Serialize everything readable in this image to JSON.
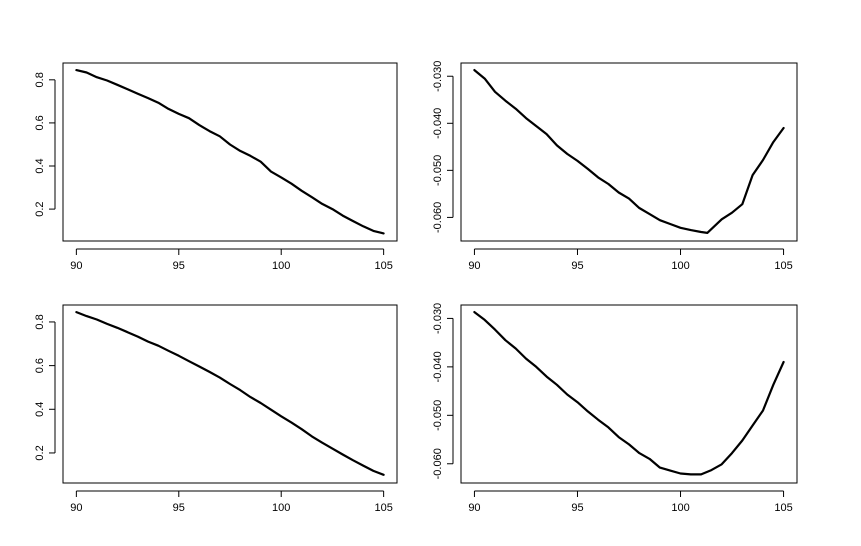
{
  "chart_data": [
    {
      "type": "line",
      "xlim": [
        90,
        105
      ],
      "ylim": [
        0.085,
        0.845
      ],
      "x_ticks": [
        "90",
        "95",
        "100",
        "105"
      ],
      "y_ticks": [
        "0.2",
        "0.4",
        "0.6",
        "0.8"
      ],
      "series": [
        {
          "x": [
            90,
            90.5,
            91,
            91.5,
            92,
            92.5,
            93,
            93.5,
            94,
            94.5,
            95,
            95.5,
            96,
            96.5,
            97,
            97.5,
            98,
            98.5,
            99,
            99.5,
            100,
            100.5,
            101,
            101.5,
            102,
            102.5,
            103,
            103.5,
            104,
            104.5,
            105
          ],
          "y": [
            0.845,
            0.834,
            0.812,
            0.797,
            0.777,
            0.756,
            0.735,
            0.715,
            0.694,
            0.665,
            0.642,
            0.622,
            0.59,
            0.562,
            0.538,
            0.5,
            0.47,
            0.447,
            0.42,
            0.374,
            0.347,
            0.318,
            0.285,
            0.255,
            0.224,
            0.2,
            0.17,
            0.145,
            0.12,
            0.099,
            0.087
          ]
        }
      ]
    },
    {
      "type": "line",
      "xlim": [
        90,
        105
      ],
      "ylim": [
        -0.0635,
        -0.0287
      ],
      "x_ticks": [
        "90",
        "95",
        "100",
        "105"
      ],
      "y_ticks": [
        "-0.030",
        "-0.040",
        "-0.050",
        "-0.060"
      ],
      "series": [
        {
          "x": [
            90,
            90.5,
            91,
            91.5,
            92,
            92.5,
            93,
            93.5,
            94,
            94.5,
            95,
            95.5,
            96,
            96.5,
            97,
            97.5,
            98,
            98.5,
            99,
            99.5,
            100,
            100.5,
            101,
            101.3,
            102,
            102.5,
            103,
            103.5,
            104,
            104.5,
            105
          ],
          "y": [
            -0.0287,
            -0.0305,
            -0.0333,
            -0.0352,
            -0.0369,
            -0.0389,
            -0.0406,
            -0.0423,
            -0.0447,
            -0.0465,
            -0.048,
            -0.0497,
            -0.0515,
            -0.0529,
            -0.0547,
            -0.056,
            -0.058,
            -0.0593,
            -0.0606,
            -0.0614,
            -0.0622,
            -0.0627,
            -0.0631,
            -0.0633,
            -0.0604,
            -0.059,
            -0.0572,
            -0.051,
            -0.0478,
            -0.044,
            -0.041
          ]
        }
      ]
    },
    {
      "type": "line",
      "xlim": [
        90,
        105
      ],
      "ylim": [
        0.095,
        0.845
      ],
      "x_ticks": [
        "90",
        "95",
        "100",
        "105"
      ],
      "y_ticks": [
        "0.2",
        "0.4",
        "0.6",
        "0.8"
      ],
      "series": [
        {
          "x": [
            90,
            90.5,
            91,
            91.5,
            92,
            92.5,
            93,
            93.5,
            94,
            94.5,
            95,
            95.5,
            96,
            96.5,
            97,
            97.5,
            98,
            98.5,
            99,
            99.5,
            100,
            100.5,
            101,
            101.5,
            102,
            102.5,
            103,
            103.5,
            104,
            104.5,
            105
          ],
          "y": [
            0.845,
            0.827,
            0.811,
            0.791,
            0.773,
            0.753,
            0.733,
            0.71,
            0.691,
            0.668,
            0.645,
            0.62,
            0.596,
            0.571,
            0.545,
            0.516,
            0.488,
            0.456,
            0.429,
            0.398,
            0.368,
            0.339,
            0.309,
            0.276,
            0.247,
            0.22,
            0.193,
            0.167,
            0.142,
            0.118,
            0.1
          ]
        }
      ]
    },
    {
      "type": "line",
      "xlim": [
        90,
        105
      ],
      "ylim": [
        -0.0625,
        -0.0287
      ],
      "x_ticks": [
        "90",
        "95",
        "100",
        "105"
      ],
      "y_ticks": [
        "-0.030",
        "-0.040",
        "-0.050",
        "-0.060"
      ],
      "series": [
        {
          "x": [
            90,
            90.5,
            91,
            91.5,
            92,
            92.5,
            93,
            93.5,
            94,
            94.5,
            95,
            95.5,
            96,
            96.5,
            97,
            97.5,
            98,
            98.5,
            99,
            99.5,
            100,
            100.5,
            101,
            101.5,
            102,
            102.5,
            103,
            103.5,
            104,
            104.5,
            105
          ],
          "y": [
            -0.0287,
            -0.0303,
            -0.0323,
            -0.0345,
            -0.0362,
            -0.0383,
            -0.04,
            -0.042,
            -0.0437,
            -0.0457,
            -0.0473,
            -0.0492,
            -0.0509,
            -0.0525,
            -0.0545,
            -0.056,
            -0.0578,
            -0.059,
            -0.0608,
            -0.0614,
            -0.062,
            -0.0622,
            -0.0622,
            -0.0613,
            -0.0601,
            -0.0578,
            -0.0552,
            -0.0521,
            -0.049,
            -0.0437,
            -0.039
          ]
        }
      ]
    }
  ]
}
